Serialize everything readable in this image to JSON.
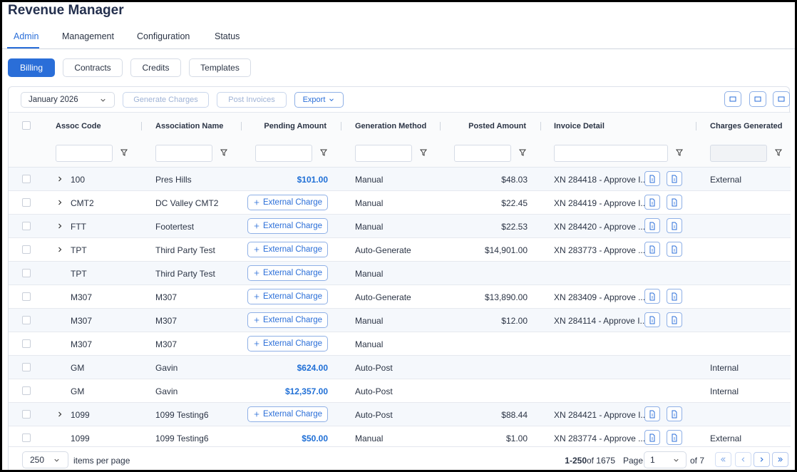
{
  "header": {
    "title": "Revenue Manager"
  },
  "tabs": [
    "Admin",
    "Management",
    "Configuration",
    "Status"
  ],
  "subtabs": [
    "Billing",
    "Contracts",
    "Credits",
    "Templates"
  ],
  "toolbar": {
    "month": "January 2026",
    "generate": "Generate Charges",
    "post": "Post Invoices",
    "export": "Export"
  },
  "table": {
    "columns": [
      "Assoc Code",
      "Association Name",
      "Pending Amount",
      "Generation Method",
      "Posted Amount",
      "Invoice Detail",
      "Charges Generated"
    ],
    "external_charge": "External Charge",
    "rows": [
      {
        "expand": true,
        "code": "100",
        "name": "Pres Hills",
        "pending": "$101.00",
        "method": "Manual",
        "posted": "$48.03",
        "invoice": "XN 284418 - Approve I...",
        "charges": "External"
      },
      {
        "expand": true,
        "code": "CMT2",
        "name": "DC Valley CMT2",
        "pending": null,
        "method": "Manual",
        "posted": "$22.45",
        "invoice": "XN 284419 - Approve I...",
        "charges": null
      },
      {
        "expand": true,
        "code": "FTT",
        "name": "Footertest",
        "pending": null,
        "method": "Manual",
        "posted": "$22.53",
        "invoice": "XN 284420 - Approve ...",
        "charges": null
      },
      {
        "expand": true,
        "code": "TPT",
        "name": "Third Party Test",
        "pending": null,
        "method": "Auto-Generate",
        "posted": "$14,901.00",
        "invoice": "XN 283773 - Approve ...",
        "charges": null
      },
      {
        "expand": false,
        "code": "TPT",
        "name": "Third Party Test",
        "pending": null,
        "method": "Manual",
        "posted": null,
        "invoice": null,
        "charges": null
      },
      {
        "expand": false,
        "code": "M307",
        "name": "M307",
        "pending": null,
        "method": "Auto-Generate",
        "posted": "$13,890.00",
        "invoice": "XN 283409 - Approve ...",
        "charges": null
      },
      {
        "expand": false,
        "code": "M307",
        "name": "M307",
        "pending": null,
        "method": "Manual",
        "posted": "$12.00",
        "invoice": "XN 284114 - Approve I...",
        "charges": null
      },
      {
        "expand": false,
        "code": "M307",
        "name": "M307",
        "pending": null,
        "method": "Manual",
        "posted": null,
        "invoice": null,
        "charges": null
      },
      {
        "expand": false,
        "code": "GM",
        "name": "Gavin",
        "pending": "$624.00",
        "method": "Auto-Post",
        "posted": null,
        "invoice": null,
        "charges": "Internal"
      },
      {
        "expand": false,
        "code": "GM",
        "name": "Gavin",
        "pending": "$12,357.00",
        "method": "Auto-Post",
        "posted": null,
        "invoice": null,
        "charges": "Internal"
      },
      {
        "expand": true,
        "code": "1099",
        "name": "1099 Testing6",
        "pending": null,
        "method": "Auto-Post",
        "posted": "$88.44",
        "invoice": "XN 284421 - Approve I...",
        "charges": null
      },
      {
        "expand": false,
        "code": "1099",
        "name": "1099 Testing6",
        "pending": "$50.00",
        "method": "Manual",
        "posted": "$1.00",
        "invoice": "XN 283774 - Approve ...",
        "charges": "External"
      }
    ]
  },
  "footer": {
    "page_size": "250",
    "items_per_page": "items per page",
    "range": "1-250",
    "of_total": "of 1675",
    "page_label": "Page",
    "page": "1",
    "of_pages": "of 7"
  }
}
